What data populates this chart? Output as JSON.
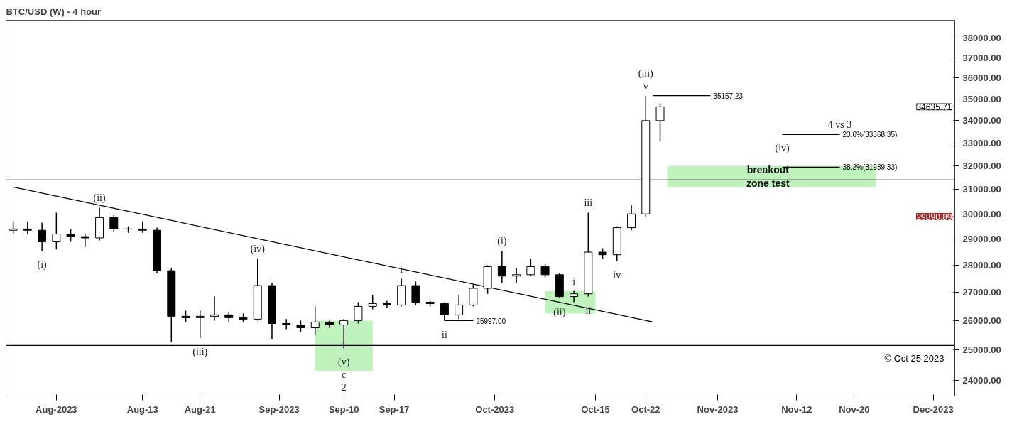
{
  "chart_data": {
    "type": "candlestick",
    "title": "BTC/USD (W) - 4 hour",
    "x": [
      "2023-07-26",
      "2023-07-28",
      "2023-07-30",
      "2023-08-01",
      "2023-08-03",
      "2023-08-05",
      "2023-08-07",
      "2023-08-09",
      "2023-08-11",
      "2023-08-13",
      "2023-08-15",
      "2023-08-17",
      "2023-08-19",
      "2023-08-21",
      "2023-08-23",
      "2023-08-25",
      "2023-08-27",
      "2023-08-29",
      "2023-08-31",
      "2023-09-02",
      "2023-09-04",
      "2023-09-06",
      "2023-09-08",
      "2023-09-10",
      "2023-09-12",
      "2023-09-14",
      "2023-09-16",
      "2023-09-18",
      "2023-09-20",
      "2023-09-22",
      "2023-09-24",
      "2023-09-26",
      "2023-09-28",
      "2023-09-30",
      "2023-10-02",
      "2023-10-04",
      "2023-10-06",
      "2023-10-08",
      "2023-10-10",
      "2023-10-12",
      "2023-10-14",
      "2023-10-16",
      "2023-10-18",
      "2023-10-20",
      "2023-10-22",
      "2023-10-24"
    ],
    "ohlc": [
      [
        29350,
        29700,
        29200,
        29400
      ],
      [
        29400,
        29700,
        29200,
        29350
      ],
      [
        29350,
        29650,
        28550,
        28900
      ],
      [
        28900,
        30050,
        28600,
        29200
      ],
      [
        29200,
        29400,
        28900,
        29100
      ],
      [
        29100,
        29200,
        28700,
        29050
      ],
      [
        29050,
        30250,
        28950,
        29850
      ],
      [
        29850,
        29950,
        29300,
        29400
      ],
      [
        29400,
        29500,
        29250,
        29400
      ],
      [
        29400,
        29700,
        29250,
        29350
      ],
      [
        29350,
        29450,
        27700,
        27800
      ],
      [
        27800,
        27900,
        25250,
        26150
      ],
      [
        26150,
        26350,
        25950,
        26100
      ],
      [
        26100,
        26350,
        25400,
        26150
      ],
      [
        26150,
        26850,
        26000,
        26200
      ],
      [
        26200,
        26300,
        25950,
        26100
      ],
      [
        26100,
        26250,
        25950,
        26050
      ],
      [
        26050,
        28250,
        26000,
        27250
      ],
      [
        27250,
        27350,
        25350,
        25900
      ],
      [
        25900,
        26050,
        25700,
        25850
      ],
      [
        25850,
        26000,
        25600,
        25750
      ],
      [
        25750,
        26500,
        25500,
        25950
      ],
      [
        25950,
        26000,
        25750,
        25850
      ],
      [
        25850,
        26050,
        25050,
        26000
      ],
      [
        26000,
        26650,
        25900,
        26500
      ],
      [
        26500,
        26900,
        26400,
        26600
      ],
      [
        26600,
        26700,
        26450,
        26550
      ],
      [
        26550,
        27500,
        26500,
        27250
      ],
      [
        27250,
        27400,
        26550,
        26650
      ],
      [
        26650,
        26700,
        26500,
        26600
      ],
      [
        26600,
        26650,
        25997,
        26200
      ],
      [
        26200,
        26900,
        26050,
        26550
      ],
      [
        26550,
        27300,
        26500,
        27150
      ],
      [
        27150,
        28000,
        26950,
        27950
      ],
      [
        27950,
        28550,
        27350,
        27600
      ],
      [
        27600,
        27900,
        27350,
        27650
      ],
      [
        27650,
        28250,
        27600,
        27950
      ],
      [
        27950,
        28050,
        27550,
        27650
      ],
      [
        27650,
        27700,
        26800,
        26850
      ],
      [
        26850,
        27050,
        26650,
        26950
      ],
      [
        26950,
        30050,
        26850,
        28500
      ],
      [
        28500,
        28650,
        28250,
        28400
      ],
      [
        28400,
        29500,
        28150,
        29450
      ],
      [
        29450,
        30350,
        29350,
        30000
      ],
      [
        30000,
        35157.23,
        29900,
        34000
      ],
      [
        34000,
        34800,
        33050,
        34635.71
      ]
    ],
    "series": [
      {
        "type": "line",
        "color": "#b4f0b0",
        "x": [
          "2023-09-06",
          "2023-09-14"
        ],
        "values": [
          null,
          null
        ],
        "lower": [
          24300,
          24300
        ],
        "upper": [
          26000,
          26000
        ]
      },
      {
        "type": "line",
        "color": "#b4f0b0",
        "x": [
          "2023-10-08",
          "2023-10-15"
        ],
        "values": [
          null,
          null
        ],
        "lower": [
          26250,
          26250
        ],
        "upper": [
          27050,
          27050
        ]
      },
      {
        "type": "line",
        "color": "#b4f0b0",
        "x": [
          "2023-10-25",
          "2023-11-23"
        ],
        "values": [
          null,
          null
        ],
        "lower": [
          31100,
          31100
        ],
        "upper": [
          32000,
          32000
        ]
      },
      {
        "type": "line",
        "color": "#000000",
        "x": [
          "2023-07-26",
          "2023-10-23"
        ],
        "values": [
          31100,
          25950
        ]
      },
      {
        "type": "line",
        "color": "#000000",
        "name": "35157.23",
        "x": [
          "2023-10-23",
          "2023-10-31"
        ],
        "values": [
          35157.23,
          35157.23
        ]
      },
      {
        "type": "line",
        "color": "#000000",
        "name": "25997.00",
        "x": [
          "2023-09-24",
          "2023-09-28"
        ],
        "values": [
          25997,
          25997
        ]
      },
      {
        "type": "line",
        "color": "#000000",
        "name": "23.6%(33368.35)",
        "x": [
          "2023-11-10",
          "2023-11-18"
        ],
        "values": [
          33368.35,
          33368.35
        ]
      },
      {
        "type": "line",
        "color": "#000000",
        "name": "38.2%(31939.33)",
        "x": [
          "2023-11-10",
          "2023-11-18"
        ],
        "values": [
          31939.33,
          31939.33
        ]
      }
    ],
    "ref_lines": [
      {
        "axis": "y",
        "value": 31400,
        "color": "#000000"
      },
      {
        "axis": "y",
        "value": 25150,
        "color": "#000000"
      },
      {
        "axis": "y",
        "value": 34635.71,
        "color": "#555555",
        "label": "34635.71"
      },
      {
        "axis": "y",
        "value": 29890.89,
        "color": "#a52a2a",
        "label": "29890.89"
      }
    ],
    "annotations": [
      {
        "text": "(i)",
        "x": "2023-07-30",
        "y": 28550
      },
      {
        "text": "(ii)",
        "x": "2023-08-07",
        "y": 30250
      },
      {
        "text": "(iii)",
        "x": "2023-08-21",
        "y": 25400
      },
      {
        "text": "(iv)",
        "x": "2023-08-29",
        "y": 28250
      },
      {
        "text": "(v)\nc\n2",
        "x": "2023-09-10",
        "y": 25050
      },
      {
        "text": "i",
        "x": "2023-09-18",
        "y": 27500
      },
      {
        "text": "ii",
        "x": "2023-09-24",
        "y": 25997
      },
      {
        "text": "(i)",
        "x": "2023-10-02",
        "y": 28550
      },
      {
        "text": "i",
        "x": "2023-10-12",
        "y": 27050
      },
      {
        "text": "(ii)",
        "x": "2023-10-10",
        "y": 26800
      },
      {
        "text": "ii",
        "x": "2023-10-14",
        "y": 26850
      },
      {
        "text": "iii",
        "x": "2023-10-14",
        "y": 30050
      },
      {
        "text": "iv",
        "x": "2023-10-18",
        "y": 28150
      },
      {
        "text": "(iii)\nv",
        "x": "2023-10-22",
        "y": 35157.23
      },
      {
        "text": "(iv)",
        "x": "2023-11-10",
        "y": 33368.35
      },
      {
        "text": "4 vs 3",
        "x": "2023-11-18",
        "y": 33368.35
      },
      {
        "text": "breakout\nzone test",
        "x": "2023-11-08",
        "y": 31550
      },
      "© Oct 25 2023"
    ],
    "xlim": [
      "2023-07-25",
      "2023-12-04"
    ],
    "xticks": [
      {
        "value": "2023-08-01",
        "label": "Aug-2023"
      },
      {
        "value": "2023-08-13",
        "label": "Aug-13"
      },
      {
        "value": "2023-08-21",
        "label": "Aug-21"
      },
      {
        "value": "2023-09-01",
        "label": "Sep-2023"
      },
      {
        "value": "2023-09-10",
        "label": "Sep-10"
      },
      {
        "value": "2023-09-17",
        "label": "Sep-17"
      },
      {
        "value": "2023-10-01",
        "label": "Oct-2023"
      },
      {
        "value": "2023-10-15",
        "label": "Oct-15"
      },
      {
        "value": "2023-10-22",
        "label": "Oct-22"
      },
      {
        "value": "2023-11-01",
        "label": "Nov-2023"
      },
      {
        "value": "2023-11-12",
        "label": "Nov-12"
      },
      {
        "value": "2023-11-20",
        "label": "Nov-20"
      },
      {
        "value": "2023-12-01",
        "label": "Dec-2023"
      }
    ],
    "ylim": [
      23500,
      38900
    ],
    "yticks": [
      {
        "value": 24000,
        "label": "24000.00"
      },
      {
        "value": 25000,
        "label": "25000.00"
      },
      {
        "value": 26000,
        "label": "26000.00"
      },
      {
        "value": 27000,
        "label": "27000.00"
      },
      {
        "value": 28000,
        "label": "28000.00"
      },
      {
        "value": 29000,
        "label": "29000.00"
      },
      {
        "value": 30000,
        "label": "30000.00"
      },
      {
        "value": 31000,
        "label": "31000.00"
      },
      {
        "value": 32000,
        "label": "32000.00"
      },
      {
        "value": 33000,
        "label": "33000.00"
      },
      {
        "value": 34000,
        "label": "34000.00"
      },
      {
        "value": 35000,
        "label": "35000.00"
      },
      {
        "value": 36000,
        "label": "36000.00"
      },
      {
        "value": 37000,
        "label": "37000.00"
      },
      {
        "value": 38000,
        "label": "38000.00"
      }
    ],
    "log": true
  }
}
